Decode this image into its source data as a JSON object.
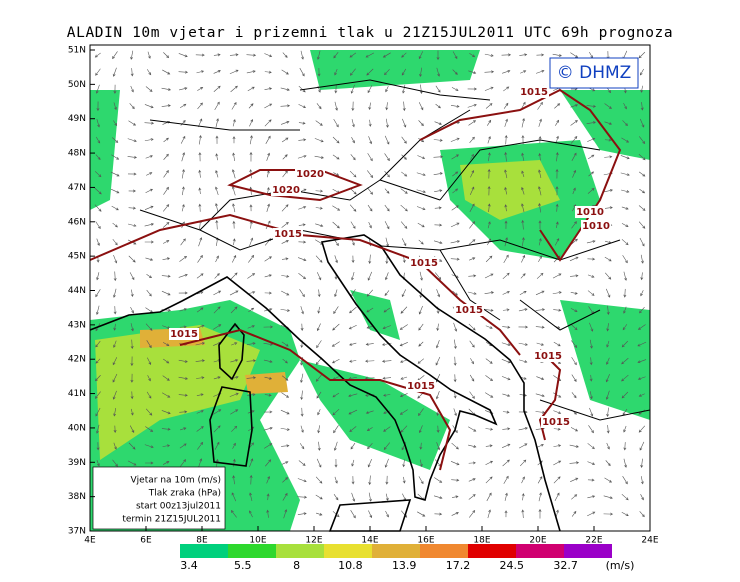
{
  "title": "ALADIN 10m vjetar i prizemni tlak u 21Z15JUL2011 UTC 69h prognoza",
  "copyright": "© DHMZ",
  "lat_labels": [
    "51N",
    "50N",
    "49N",
    "48N",
    "47N",
    "46N",
    "45N",
    "44N",
    "43N",
    "42N",
    "41N",
    "40N",
    "39N",
    "38N",
    "37N"
  ],
  "lon_labels": [
    "4E",
    "6E",
    "8E",
    "10E",
    "12E",
    "14E",
    "16E",
    "18E",
    "20E",
    "22E",
    "24E"
  ],
  "isobar_labels": [
    "1015",
    "1020",
    "1020",
    "1015",
    "1010",
    "1010",
    "1015",
    "1015",
    "1015",
    "1015",
    "1015",
    "1015"
  ],
  "info_box": [
    "Vjetar na 10m (m/s)",
    "Tlak zraka (hPa)",
    "start 00z13jul2011",
    "termin 21Z15JUL2011"
  ],
  "colorbar": {
    "values": [
      3.4,
      5.5,
      8,
      10.8,
      13.9,
      17.2,
      24.5,
      32.7
    ],
    "unit": "(m/s)",
    "colors": [
      "#00d07c",
      "#2ed82e",
      "#a8e03c",
      "#e8e030",
      "#e0b038",
      "#f08830",
      "#e00000",
      "#d00070",
      "#9a00c8"
    ]
  }
}
